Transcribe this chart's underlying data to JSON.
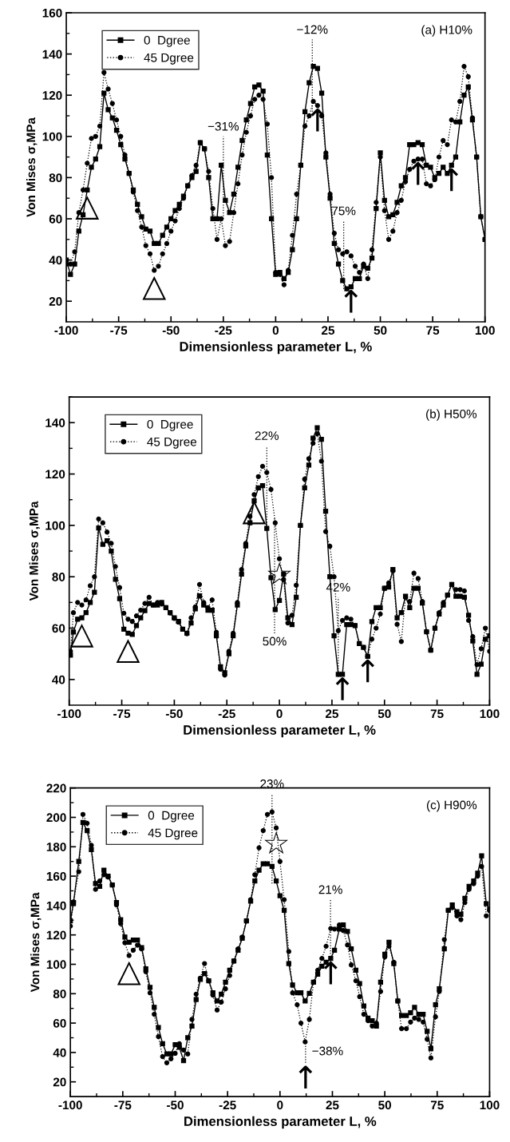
{
  "chart_data": [
    {
      "type": "line",
      "xlabel": "Dimensionless parameter L, %",
      "ylabel": "Von Mises σ,MPa",
      "legend": "top left",
      "grid": false,
      "xlim": [
        -100,
        100
      ],
      "xticks": [
        -100,
        {
          "value": -87.5,
          "label": null
        },
        -75,
        {
          "value": -62.5,
          "label": null
        },
        -50,
        {
          "value": -37.5,
          "label": null
        },
        -25,
        {
          "value": -12.5,
          "label": null
        },
        0,
        {
          "value": 12.5,
          "label": null
        },
        25,
        {
          "value": 37.5,
          "label": null
        },
        50,
        {
          "value": 62.5,
          "label": null
        },
        75,
        {
          "value": 87.5,
          "label": null
        },
        100
      ],
      "ylim": [
        10,
        160
      ],
      "yticks": [
        20,
        {
          "value": 30,
          "label": null
        },
        40,
        {
          "value": 50,
          "label": null
        },
        60,
        {
          "value": 70,
          "label": null
        },
        80,
        {
          "value": 90,
          "label": null
        },
        100,
        {
          "value": 110,
          "label": null
        },
        120,
        {
          "value": 130,
          "label": null
        },
        140,
        {
          "value": 150,
          "label": null
        },
        160
      ],
      "series": [
        {
          "name": "0  Dgree",
          "color": "#000000",
          "marker": "square",
          "line_style": "solid",
          "x": [
            -100,
            -98,
            -96,
            -94,
            -92,
            -90,
            -88,
            -86,
            -84,
            -82,
            -80,
            -78,
            -76,
            -74,
            -72,
            -70,
            -68,
            -66,
            -64,
            -62,
            -60,
            -58,
            -56,
            -54,
            -52,
            -50,
            -48,
            -46,
            -44,
            -42,
            -40,
            -38,
            -36,
            -34,
            -32,
            -30,
            -28,
            -26,
            -24,
            -22,
            -20,
            -18,
            -16,
            -14,
            -12,
            -10,
            -8,
            -6,
            -4,
            -2,
            0,
            2,
            4,
            6,
            8,
            10,
            12,
            14,
            16,
            18,
            20,
            22,
            24,
            26,
            28,
            30,
            32,
            34,
            36,
            38,
            40,
            42,
            44,
            46,
            48,
            50,
            52,
            54,
            56,
            58,
            60,
            62,
            64,
            66,
            68,
            70,
            72,
            74,
            76,
            78,
            80,
            82,
            84,
            86,
            88,
            90,
            92,
            94,
            96,
            98,
            100
          ],
          "values": [
            40,
            33,
            38,
            54,
            62,
            74,
            85,
            89,
            95,
            121,
            113,
            109,
            103,
            96,
            89,
            82,
            74,
            67,
            61,
            55,
            54,
            48,
            48,
            52,
            56,
            60,
            64,
            67,
            71,
            76,
            80,
            83,
            97,
            94,
            80,
            60,
            60,
            86,
            69,
            63,
            72,
            85,
            98,
            108,
            116,
            124,
            125,
            122,
            91,
            60,
            33,
            34,
            31,
            34,
            45,
            60,
            86,
            112,
            126,
            134,
            133,
            121,
            90,
            70,
            48,
            38,
            30,
            26,
            27,
            31,
            31,
            37,
            36,
            41,
            65,
            92,
            69,
            61,
            62,
            68,
            76,
            80,
            96,
            96,
            97,
            96,
            86,
            85,
            80,
            82,
            85,
            82,
            86,
            90,
            107,
            120,
            124,
            108,
            90,
            61,
            50
          ]
        },
        {
          "name": "45 Dgree",
          "color": "#000000",
          "marker": "circle",
          "line_style": "dotted",
          "x": [
            -100,
            -98,
            -96,
            -94,
            -92,
            -90,
            -88,
            -86,
            -84,
            -82,
            -80,
            -78,
            -76,
            -74,
            -72,
            -70,
            -68,
            -66,
            -64,
            -62,
            -60,
            -58,
            -56,
            -54,
            -52,
            -50,
            -48,
            -46,
            -44,
            -42,
            -40,
            -38,
            -36,
            -34,
            -32,
            -30,
            -28,
            -26,
            -24,
            -22,
            -20,
            -18,
            -16,
            -14,
            -12,
            -10,
            -8,
            -6,
            -4,
            -2,
            0,
            2,
            4,
            6,
            8,
            10,
            12,
            14,
            16,
            18,
            20,
            22,
            24,
            26,
            28,
            30,
            32,
            34,
            36,
            38,
            40,
            42,
            44,
            46,
            48,
            50,
            52,
            54,
            56,
            58,
            60,
            62,
            64,
            66,
            68,
            70,
            72,
            74,
            76,
            78,
            80,
            82,
            84,
            86,
            88,
            90,
            92,
            94,
            96,
            98,
            100
          ],
          "values": [
            38,
            38,
            44,
            63,
            74,
            87,
            99,
            100,
            105,
            131,
            123,
            116,
            108,
            100,
            91,
            82,
            73,
            64,
            56,
            47,
            43,
            35,
            37,
            43,
            48,
            54,
            59,
            65,
            70,
            76,
            81,
            86,
            97,
            94,
            83,
            65,
            50,
            60,
            47,
            49,
            63,
            77,
            91,
            102,
            110,
            118,
            120,
            118,
            106,
            80,
            34,
            33,
            28,
            35,
            52,
            72,
            86,
            105,
            110,
            117,
            115,
            110,
            92,
            72,
            53,
            45,
            43,
            44,
            42,
            37,
            34,
            38,
            31,
            45,
            68,
            90,
            64,
            50,
            54,
            63,
            69,
            78,
            84,
            88,
            89,
            89,
            77,
            76,
            79,
            90,
            98,
            96,
            108,
            107,
            117,
            134,
            129,
            109,
            90,
            61,
            50
          ]
        },
        {
          "color": "#000000",
          "marker": "none",
          "line_style": "dotted",
          "x": [
            -25,
            -25
          ],
          "values": [
            60,
            100
          ]
        },
        {
          "color": "#000000",
          "marker": "none",
          "line_style": "dotted",
          "x": [
            17.5,
            17.5
          ],
          "values": [
            112,
            147
          ]
        },
        {
          "color": "#000000",
          "marker": "none",
          "line_style": "dotted",
          "x": [
            32.5,
            32.5
          ],
          "values": [
            26,
            59
          ]
        }
      ],
      "annotations": [
        {
          "text": "(a) H10%"
        },
        {
          "text": "−31%",
          "x": -25,
          "y": 100
        },
        {
          "text": "−12%",
          "x": 17.5,
          "y": 147
        },
        {
          "text": "75%",
          "x": 32.5,
          "y": 59
        },
        {
          "text": "△",
          "x": -90,
          "y": 74
        },
        {
          "text": "△",
          "x": -58,
          "y": 35
        },
        {
          "text": "↑",
          "x": 20,
          "y": 115
        },
        {
          "text": "↑",
          "x": 36,
          "y": 27
        },
        {
          "text": "↑",
          "x": 68,
          "y": 89
        },
        {
          "text": "↑",
          "x": 84,
          "y": 86
        }
      ]
    },
    {
      "type": "line",
      "xlabel": "Dimensionless parameter L, %",
      "ylabel": "Von Mises σ,MPa",
      "legend": "top left",
      "grid": false,
      "xlim": [
        -100,
        100
      ],
      "xticks": [
        -100,
        {
          "value": -87.5,
          "label": null
        },
        -75,
        {
          "value": -62.5,
          "label": null
        },
        -50,
        {
          "value": -37.5,
          "label": null
        },
        -25,
        {
          "value": -12.5,
          "label": null
        },
        0,
        {
          "value": 12.5,
          "label": null
        },
        25,
        {
          "value": 37.5,
          "label": null
        },
        50,
        {
          "value": 62.5,
          "label": null
        },
        75,
        {
          "value": 87.5,
          "label": null
        },
        100
      ],
      "ylim": [
        30,
        150
      ],
      "yticks": [
        40,
        {
          "value": 50,
          "label": null
        },
        60,
        {
          "value": 70,
          "label": null
        },
        80,
        {
          "value": 90,
          "label": null
        },
        100,
        {
          "value": 110,
          "label": null
        },
        120,
        {
          "value": 130,
          "label": null
        },
        140,
        {
          "value": 150,
          "label": null
        }
      ],
      "series": [
        {
          "name": "0  Dgree",
          "color": "#000000",
          "marker": "square",
          "line_style": "solid",
          "x": [
            -99.4,
            -98,
            -96,
            -94,
            -92,
            -90,
            -88,
            -86,
            -84,
            -82,
            -80,
            -78,
            -76,
            -74,
            -72,
            -70,
            -68,
            -66,
            -64,
            -62,
            -60,
            -58,
            -56,
            -54,
            -52,
            -50,
            -48,
            -46,
            -44,
            -42,
            -40,
            -38,
            -36,
            -34,
            -32,
            -30,
            -28,
            -26,
            -24,
            -22,
            -20,
            -18,
            -16,
            -14,
            -12,
            -10,
            -8,
            -6,
            -4,
            -2,
            0,
            2,
            4,
            6,
            8,
            10,
            12,
            14,
            16,
            18,
            20,
            22,
            24,
            26,
            28,
            30,
            32,
            34,
            36,
            38,
            40,
            42,
            44,
            46,
            48,
            50,
            52,
            54,
            56,
            58,
            60,
            62,
            64,
            66,
            68,
            70,
            72,
            74,
            76,
            78,
            80,
            82,
            84,
            86,
            88,
            90,
            92,
            94,
            96,
            98,
            100
          ],
          "values": [
            49.5,
            58.5,
            63.5,
            64,
            66,
            70,
            74,
            99,
            92.6,
            94,
            90,
            79,
            71.5,
            59.6,
            58,
            57.6,
            61,
            64,
            66.8,
            69.6,
            69,
            69,
            70,
            68,
            66,
            64,
            62.6,
            59.6,
            58,
            62,
            67.5,
            72.6,
            69,
            67,
            67,
            57,
            45,
            42.6,
            50,
            57,
            69,
            81,
            92,
            101,
            109.6,
            114.6,
            115.5,
            98.8,
            79.6,
            67.2,
            70.8,
            81,
            64,
            61.4,
            72,
            100,
            114.6,
            123.5,
            134,
            138,
            133.5,
            105.5,
            80,
            57,
            42,
            42,
            61.4,
            61.4,
            61,
            54,
            52.5,
            49,
            62.5,
            68,
            68,
            75.5,
            76,
            82.8,
            64,
            66,
            72.4,
            68,
            75.5,
            75.5,
            69.8,
            58.6,
            51.4,
            60,
            65.5,
            69,
            72.9,
            77,
            72.4,
            72.4,
            72,
            65,
            55,
            42,
            46,
            55.7,
            57
          ]
        },
        {
          "name": "45 Dgree",
          "color": "#000000",
          "marker": "circle",
          "line_style": "dotted",
          "x": [
            -99.4,
            -98,
            -96,
            -94,
            -92,
            -90,
            -88,
            -86,
            -84,
            -82,
            -80,
            -78,
            -76,
            -74,
            -72,
            -70,
            -68,
            -66,
            -64,
            -62,
            -60,
            -58,
            -56,
            -54,
            -52,
            -50,
            -48,
            -46,
            -44,
            -42,
            -40,
            -38,
            -36,
            -34,
            -32,
            -30,
            -28,
            -26,
            -24,
            -22,
            -20,
            -18,
            -16,
            -14,
            -12,
            -10,
            -8,
            -6,
            -4,
            -2,
            0,
            2,
            4,
            6,
            8,
            10,
            12,
            14,
            16,
            18,
            20,
            22,
            24,
            26,
            28,
            30,
            32,
            34,
            36,
            38,
            40,
            42,
            44,
            46,
            48,
            50,
            52,
            54,
            56,
            58,
            60,
            62,
            64,
            66,
            68,
            70,
            72,
            74,
            76,
            78,
            80,
            82,
            84,
            86,
            88,
            90,
            92,
            94,
            96,
            98,
            100
          ],
          "values": [
            51,
            66,
            70,
            69,
            71,
            76.5,
            80,
            102.5,
            101,
            97.4,
            93,
            84,
            75.8,
            65.8,
            63.5,
            62.6,
            64.8,
            67,
            69.6,
            72,
            69,
            70,
            69.4,
            68,
            65.9,
            63.8,
            62.3,
            59.6,
            57.8,
            64,
            68.3,
            77,
            70,
            68,
            71,
            58.4,
            44,
            41.7,
            51,
            58,
            70,
            82.8,
            93,
            103.5,
            112,
            119,
            123,
            120.6,
            114,
            101,
            87,
            79,
            62,
            65,
            76.7,
            100,
            118,
            126,
            132,
            135.7,
            125,
            97.6,
            91.9,
            80,
            59,
            63,
            64,
            63.5,
            61,
            54,
            52.5,
            49,
            55.7,
            60,
            65.5,
            75.5,
            77.6,
            82.3,
            61.5,
            54.8,
            72,
            70.4,
            81.4,
            79.3,
            70.4,
            58.6,
            51.4,
            60,
            66,
            70,
            72.9,
            77,
            75,
            75,
            74.5,
            63,
            56.7,
            45.8,
            52,
            60,
            51
          ]
        },
        {
          "color": "#000000",
          "marker": "none",
          "line_style": "dotted",
          "x": [
            -6,
            -6
          ],
          "values": [
            98,
            131
          ]
        },
        {
          "color": "#000000",
          "marker": "none",
          "line_style": "dotted",
          "x": [
            -2.3,
            -2.3
          ],
          "values": [
            58,
            103
          ]
        },
        {
          "color": "#000000",
          "marker": "none",
          "line_style": "dotted",
          "x": [
            28,
            28
          ],
          "values": [
            41,
            72
          ]
        }
      ],
      "annotations": [
        {
          "text": "(b) H50%"
        },
        {
          "text": "22%",
          "x": -6,
          "y": 131
        },
        {
          "text": "50%",
          "x": -2.3,
          "y": 58
        },
        {
          "text": "42%",
          "x": 28,
          "y": 72
        },
        {
          "text": "△",
          "x": -94,
          "y": 64
        },
        {
          "text": "△",
          "x": -72,
          "y": 58
        },
        {
          "text": "△",
          "x": -12,
          "y": 112
        },
        {
          "text": "☆",
          "x": 0,
          "y": 87
        },
        {
          "text": "↑",
          "x": 30,
          "y": 42
        },
        {
          "text": "↑",
          "x": 42,
          "y": 49
        }
      ]
    },
    {
      "type": "line",
      "xlabel": "Dimensionless parameter L, %",
      "ylabel": "Von Mises σ,MPa",
      "legend": "top left",
      "grid": false,
      "xlim": [
        -100,
        100
      ],
      "xticks": [
        -100,
        {
          "value": -87.5,
          "label": null
        },
        -75,
        {
          "value": -62.5,
          "label": null
        },
        -50,
        {
          "value": -37.5,
          "label": null
        },
        -25,
        {
          "value": -12.5,
          "label": null
        },
        0,
        {
          "value": 12.5,
          "label": null
        },
        25,
        {
          "value": 37.5,
          "label": null
        },
        50,
        {
          "value": 62.5,
          "label": null
        },
        75,
        {
          "value": 87.5,
          "label": null
        },
        100
      ],
      "ylim": [
        10,
        220
      ],
      "yticks": [
        20,
        {
          "value": 30,
          "label": null
        },
        40,
        {
          "value": 50,
          "label": null
        },
        60,
        {
          "value": 70,
          "label": null
        },
        80,
        {
          "value": 90,
          "label": null
        },
        100,
        {
          "value": 110,
          "label": null
        },
        120,
        {
          "value": 130,
          "label": null
        },
        140,
        {
          "value": 150,
          "label": null
        },
        160,
        {
          "value": 170,
          "label": null
        },
        180,
        {
          "value": 190,
          "label": null
        },
        200,
        {
          "value": 210,
          "label": null
        },
        220
      ],
      "series": [
        {
          "name": "0  Dgree",
          "color": "#000000",
          "marker": "square",
          "line_style": "solid",
          "x": [
            -100,
            -98.5,
            -96,
            -94,
            -92,
            -90,
            -88,
            -86,
            -84,
            -82,
            -80,
            -78,
            -76,
            -74,
            -72,
            -70,
            -68,
            -66,
            -64,
            -62,
            -60,
            -58,
            -56,
            -54,
            -52,
            -50,
            -48,
            -46,
            -44,
            -42,
            -40,
            -38,
            -36,
            -34,
            -32,
            -30,
            -28,
            -26,
            -24,
            -22,
            -20,
            -18,
            -16,
            -14,
            -12,
            -10,
            -8,
            -6,
            -3.8,
            -1.8,
            0,
            2,
            4.2,
            6,
            8.2,
            10,
            12,
            14,
            16,
            18,
            20,
            22,
            24.2,
            26,
            28.3,
            30.2,
            32.2,
            34,
            36.2,
            38,
            40,
            42,
            44,
            46,
            48,
            50,
            52,
            54.3,
            56.2,
            58,
            60.3,
            62.3,
            64.2,
            66.2,
            68.3,
            70.2,
            72,
            74.2,
            76,
            78.4,
            80.3,
            82.2,
            84.4,
            86.3,
            88.2,
            90.2,
            92.4,
            94.3,
            96.2,
            98.4,
            100
          ],
          "values": [
            129.5,
            142,
            170,
            196.5,
            191,
            178,
            155,
            153,
            164,
            160,
            154,
            142,
            130.4,
            118.6,
            115,
            116.5,
            116.5,
            111.4,
            97,
            84.3,
            70.7,
            57,
            46,
            39,
            39,
            45.3,
            43.5,
            34.5,
            50,
            58,
            76,
            89.7,
            93.7,
            88.8,
            80.6,
            75,
            79.7,
            87.8,
            96,
            102.3,
            109.6,
            117.7,
            129.5,
            143,
            156.7,
            164,
            168.4,
            168.4,
            166.6,
            156.7,
            146.7,
            136.7,
            100.5,
            86,
            80.6,
            80.6,
            75,
            80.2,
            87.8,
            93.3,
            98.7,
            101.4,
            104,
            109.6,
            124,
            126.8,
            122.3,
            110.5,
            96,
            86.9,
            71.6,
            63.4,
            61.6,
            58,
            87.9,
            106.9,
            115,
            100.5,
            75,
            65.2,
            65.2,
            67,
            70.7,
            66,
            66,
            54.4,
            42.6,
            72.5,
            83.3,
            110.5,
            136.7,
            140.4,
            135.8,
            134,
            144.9,
            153,
            156.7,
            162,
            173.8,
            141.3,
            137.6
          ]
        },
        {
          "name": "45 Dgree",
          "color": "#000000",
          "marker": "circle",
          "line_style": "dotted",
          "x": [
            -100,
            -98.5,
            -96,
            -94,
            -92,
            -90,
            -88,
            -86,
            -84,
            -82,
            -80,
            -78,
            -76,
            -74,
            -72,
            -70,
            -68,
            -66,
            -64,
            -62,
            -60,
            -58,
            -56,
            -54,
            -52,
            -50,
            -48,
            -46,
            -44,
            -42,
            -40,
            -38,
            -36,
            -34,
            -32,
            -30,
            -28,
            -26,
            -24,
            -22,
            -20,
            -18,
            -16,
            -14,
            -12,
            -10,
            -8,
            -6,
            -3.8,
            -1.8,
            0,
            2,
            4.2,
            6,
            8.2,
            10,
            12,
            14,
            16,
            18,
            20,
            22,
            24.2,
            26,
            28.3,
            30.2,
            32.2,
            34,
            36.2,
            38,
            40,
            42,
            44,
            46,
            48,
            50,
            52,
            54.3,
            56.2,
            58,
            60.3,
            62.3,
            64.2,
            66.2,
            68.3,
            70.2,
            72,
            74.2,
            76,
            78.4,
            80.3,
            82.2,
            84.4,
            86.3,
            88.2,
            90.2,
            92.4,
            94.3,
            96.2,
            98.4,
            100
          ],
          "values": [
            126,
            142.5,
            163,
            202,
            196,
            181,
            151,
            156.7,
            161,
            159.4,
            154,
            140.4,
            127.7,
            114.7,
            106,
            109.6,
            113,
            110.5,
            95,
            80.6,
            66,
            50.8,
            37.2,
            33,
            35.7,
            39.4,
            46,
            41.7,
            39,
            62.5,
            79.7,
            90.6,
            100.5,
            88.8,
            79,
            68.9,
            74.3,
            83.3,
            92.4,
            102.3,
            110.5,
            118.6,
            129.5,
            144,
            161,
            179.3,
            191,
            202,
            203.7,
            192.8,
            170,
            144,
            108.7,
            80.6,
            72.5,
            60,
            47.2,
            62.5,
            87.8,
            96,
            104,
            112.3,
            124.4,
            124,
            126.8,
            123,
            113.2,
            99.6,
            88.8,
            78,
            66,
            61.6,
            58,
            60,
            81.5,
            105,
            112.3,
            101.4,
            75,
            56.2,
            56.2,
            60.7,
            63.4,
            62.5,
            60.7,
            49,
            36.3,
            64.3,
            81.5,
            116.8,
            136.7,
            138.5,
            133,
            130.4,
            142,
            151,
            154.8,
            160,
            166.6,
            133,
            136.7
          ]
        },
        {
          "color": "#000000",
          "marker": "none",
          "line_style": "dotted",
          "x": [
            -3.8,
            -3.8
          ],
          "values": [
            155,
            216
          ]
        },
        {
          "color": "#000000",
          "marker": "none",
          "line_style": "dotted",
          "x": [
            24.1,
            24.1
          ],
          "values": [
            98,
            144
          ]
        },
        {
          "color": "#000000",
          "marker": "none",
          "line_style": "dotted",
          "x": [
            12.2,
            12.2
          ],
          "values": [
            33,
            47
          ]
        }
      ],
      "annotations": [
        {
          "text": "(c) H90%"
        },
        {
          "text": "23%",
          "x": -3.8,
          "y": 216
        },
        {
          "text": "21%",
          "x": 24.1,
          "y": 144
        },
        {
          "text": "−38%",
          "x": 12,
          "y": 47.2
        },
        {
          "text": "△",
          "x": -72,
          "y": 106
        },
        {
          "text": "☆",
          "x": -1.8,
          "y": 192.8
        },
        {
          "text": "↑",
          "x": 24.2,
          "y": 104
        },
        {
          "text": "↑",
          "x": 12.2,
          "y": 33
        }
      ]
    }
  ]
}
